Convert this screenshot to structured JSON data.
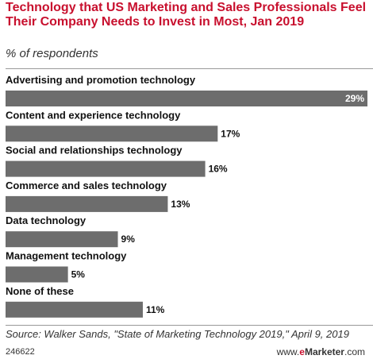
{
  "header": {
    "title": "Technology that US Marketing and Sales Professionals Feel Their Company Needs to Invest in Most, Jan 2019",
    "subtitle": "% of respondents"
  },
  "footer": {
    "source": "Source: Walker Sands, \"State of Marketing Technology 2019,\" April 9, 2019",
    "chart_id": "246622",
    "brand_prefix": "www.",
    "brand_e": "e",
    "brand_name": "Marketer",
    "brand_suffix": ".com"
  },
  "colors": {
    "bar": "#6d6d6d",
    "title": "#c8102e"
  },
  "chart_data": {
    "type": "bar",
    "orientation": "horizontal",
    "title": "Technology that US Marketing and Sales Professionals Feel Their Company Needs to Invest in Most, Jan 2019",
    "subtitle": "% of respondents",
    "categories": [
      "Advertising and promotion technology",
      "Content and experience technology",
      "Social and relationships technology",
      "Commerce and sales technology",
      "Data technology",
      "Management technology",
      "None of these"
    ],
    "values": [
      29,
      17,
      16,
      13,
      9,
      5,
      11
    ],
    "value_labels": [
      "29%",
      "17%",
      "16%",
      "13%",
      "9%",
      "5%",
      "11%"
    ],
    "unit": "%",
    "xlim": [
      0,
      29
    ],
    "grid": false
  }
}
